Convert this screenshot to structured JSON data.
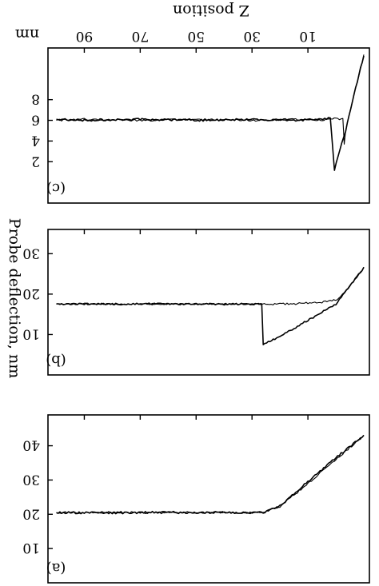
{
  "figure": {
    "x_axis_label": "Z position",
    "x_unit": "nm",
    "y_axis_label": "Probe deflection, nm"
  },
  "chart_data": [
    {
      "type": "line",
      "panel_label": "(c)",
      "xlabel": "Z position",
      "ylabel": "Probe deflection, nm",
      "xlim": [
        -12,
        103
      ],
      "ylim": [
        -13,
        2
      ],
      "x_ticks": [
        10,
        30,
        50,
        70,
        90
      ],
      "x_tick_labels": [
        "10",
        "30",
        "50",
        "70",
        "90"
      ],
      "y_ticks": [
        -2,
        -4,
        -6,
        -8
      ],
      "y_tick_labels": [
        "2",
        "4",
        "6",
        "8"
      ],
      "series": [
        {
          "x": [
            -10,
            -6.5,
            -3.5,
            -1.5,
            0.5,
            2,
            6,
            15,
            30,
            50,
            70,
            90,
            100
          ],
          "y": [
            -12.3,
            -8.5,
            -5,
            -3.2,
            -1.2,
            -6.2,
            -6.1,
            -6.0,
            -6.1,
            -6.0,
            -6.1,
            -6.0,
            -6.1
          ]
        },
        {
          "x": [
            -10,
            -6.5,
            -3.5,
            -3,
            -2.5,
            0,
            6,
            15,
            30,
            50,
            70,
            90,
            100
          ],
          "y": [
            -12.3,
            -8.5,
            -5,
            -3.7,
            -6.1,
            -6.2,
            -6.0,
            -6.1,
            -6.0,
            -6.1,
            -6.0,
            -6.1,
            -6.0
          ]
        }
      ]
    },
    {
      "type": "line",
      "panel_label": "(b)",
      "xlabel": "Z position",
      "ylabel": "Probe deflection, nm",
      "xlim": [
        -12,
        103
      ],
      "ylim": [
        -36,
        0
      ],
      "x_ticks": [
        10,
        30,
        50,
        70,
        90
      ],
      "x_tick_labels": [
        "10",
        "30",
        "50",
        "70",
        "90"
      ],
      "y_ticks": [
        -10,
        -20,
        -30
      ],
      "y_tick_labels": [
        "10",
        "20",
        "30"
      ],
      "series": [
        {
          "x": [
            -10,
            -5,
            0,
            10,
            20,
            26,
            26.5,
            30,
            40,
            60,
            80,
            100
          ],
          "y": [
            -26.5,
            -22,
            -17.5,
            -13.5,
            -9.5,
            -7.5,
            -17.5,
            -17.6,
            -17.5,
            -17.6,
            -17.5,
            -17.6
          ]
        },
        {
          "x": [
            -10,
            -5,
            -1,
            5,
            15,
            25,
            30,
            40,
            60,
            80,
            100
          ],
          "y": [
            -26.5,
            -22,
            -18.8,
            -18,
            -17.6,
            -17.5,
            -17.5,
            -17.6,
            -17.5,
            -17.6,
            -17.5
          ]
        }
      ]
    },
    {
      "type": "line",
      "panel_label": "(a)",
      "xlabel": "Z position",
      "ylabel": "Probe deflection, nm",
      "xlim": [
        -12,
        103
      ],
      "ylim": [
        -49,
        0
      ],
      "x_ticks": [
        10,
        30,
        50,
        70,
        90
      ],
      "x_tick_labels": [
        "10",
        "30",
        "50",
        "70",
        "90"
      ],
      "y_ticks": [
        -10,
        -20,
        -30,
        -40
      ],
      "y_tick_labels": [
        "10",
        "20",
        "30",
        "40"
      ],
      "series": [
        {
          "x": [
            -10,
            0,
            10,
            20,
            26,
            30,
            40,
            60,
            80,
            100
          ],
          "y": [
            -43,
            -36.5,
            -29.5,
            -22.5,
            -20.5,
            -20.5,
            -20.4,
            -20.6,
            -20.4,
            -20.5
          ]
        },
        {
          "x": [
            -10,
            0,
            10,
            20,
            26,
            30,
            40,
            60,
            80,
            100
          ],
          "y": [
            -43,
            -36,
            -29,
            -22.2,
            -20.6,
            -20.4,
            -20.6,
            -20.4,
            -20.6,
            -20.4
          ]
        }
      ]
    }
  ]
}
